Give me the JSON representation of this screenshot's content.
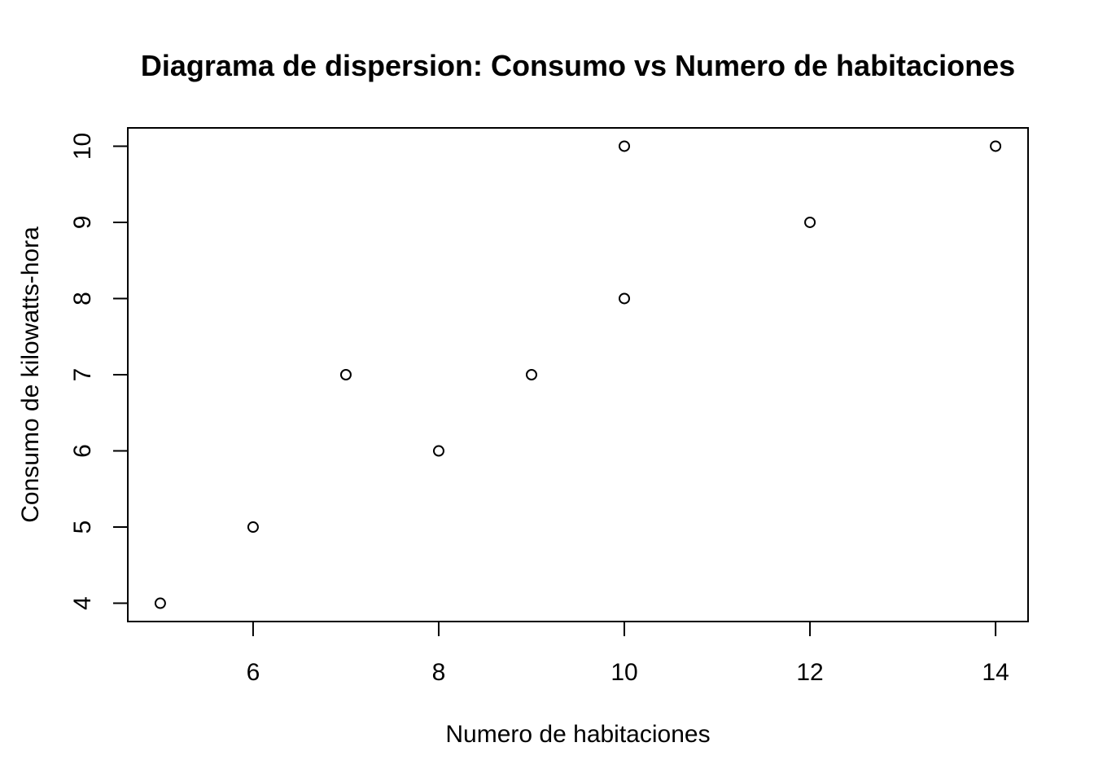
{
  "chart_data": {
    "type": "scatter",
    "title": "Diagrama de dispersion: Consumo vs Numero de habitaciones",
    "xlabel": "Numero de habitaciones",
    "ylabel": "Consumo de kilowatts-hora",
    "xlim": [
      4.65,
      14.35
    ],
    "ylim": [
      3.76,
      10.24
    ],
    "xticks": [
      6,
      8,
      10,
      12,
      14
    ],
    "yticks": [
      4,
      5,
      6,
      7,
      8,
      9,
      10
    ],
    "xtick_labels": [
      "6",
      "8",
      "10",
      "12",
      "14"
    ],
    "ytick_labels": [
      "4",
      "5",
      "6",
      "7",
      "8",
      "9",
      "10"
    ],
    "grid": false,
    "marker": "open-circle",
    "points": [
      {
        "x": 5,
        "y": 4
      },
      {
        "x": 6,
        "y": 5
      },
      {
        "x": 7,
        "y": 7
      },
      {
        "x": 8,
        "y": 6
      },
      {
        "x": 9,
        "y": 7
      },
      {
        "x": 10,
        "y": 8
      },
      {
        "x": 10,
        "y": 10
      },
      {
        "x": 12,
        "y": 9
      },
      {
        "x": 14,
        "y": 10
      }
    ]
  }
}
